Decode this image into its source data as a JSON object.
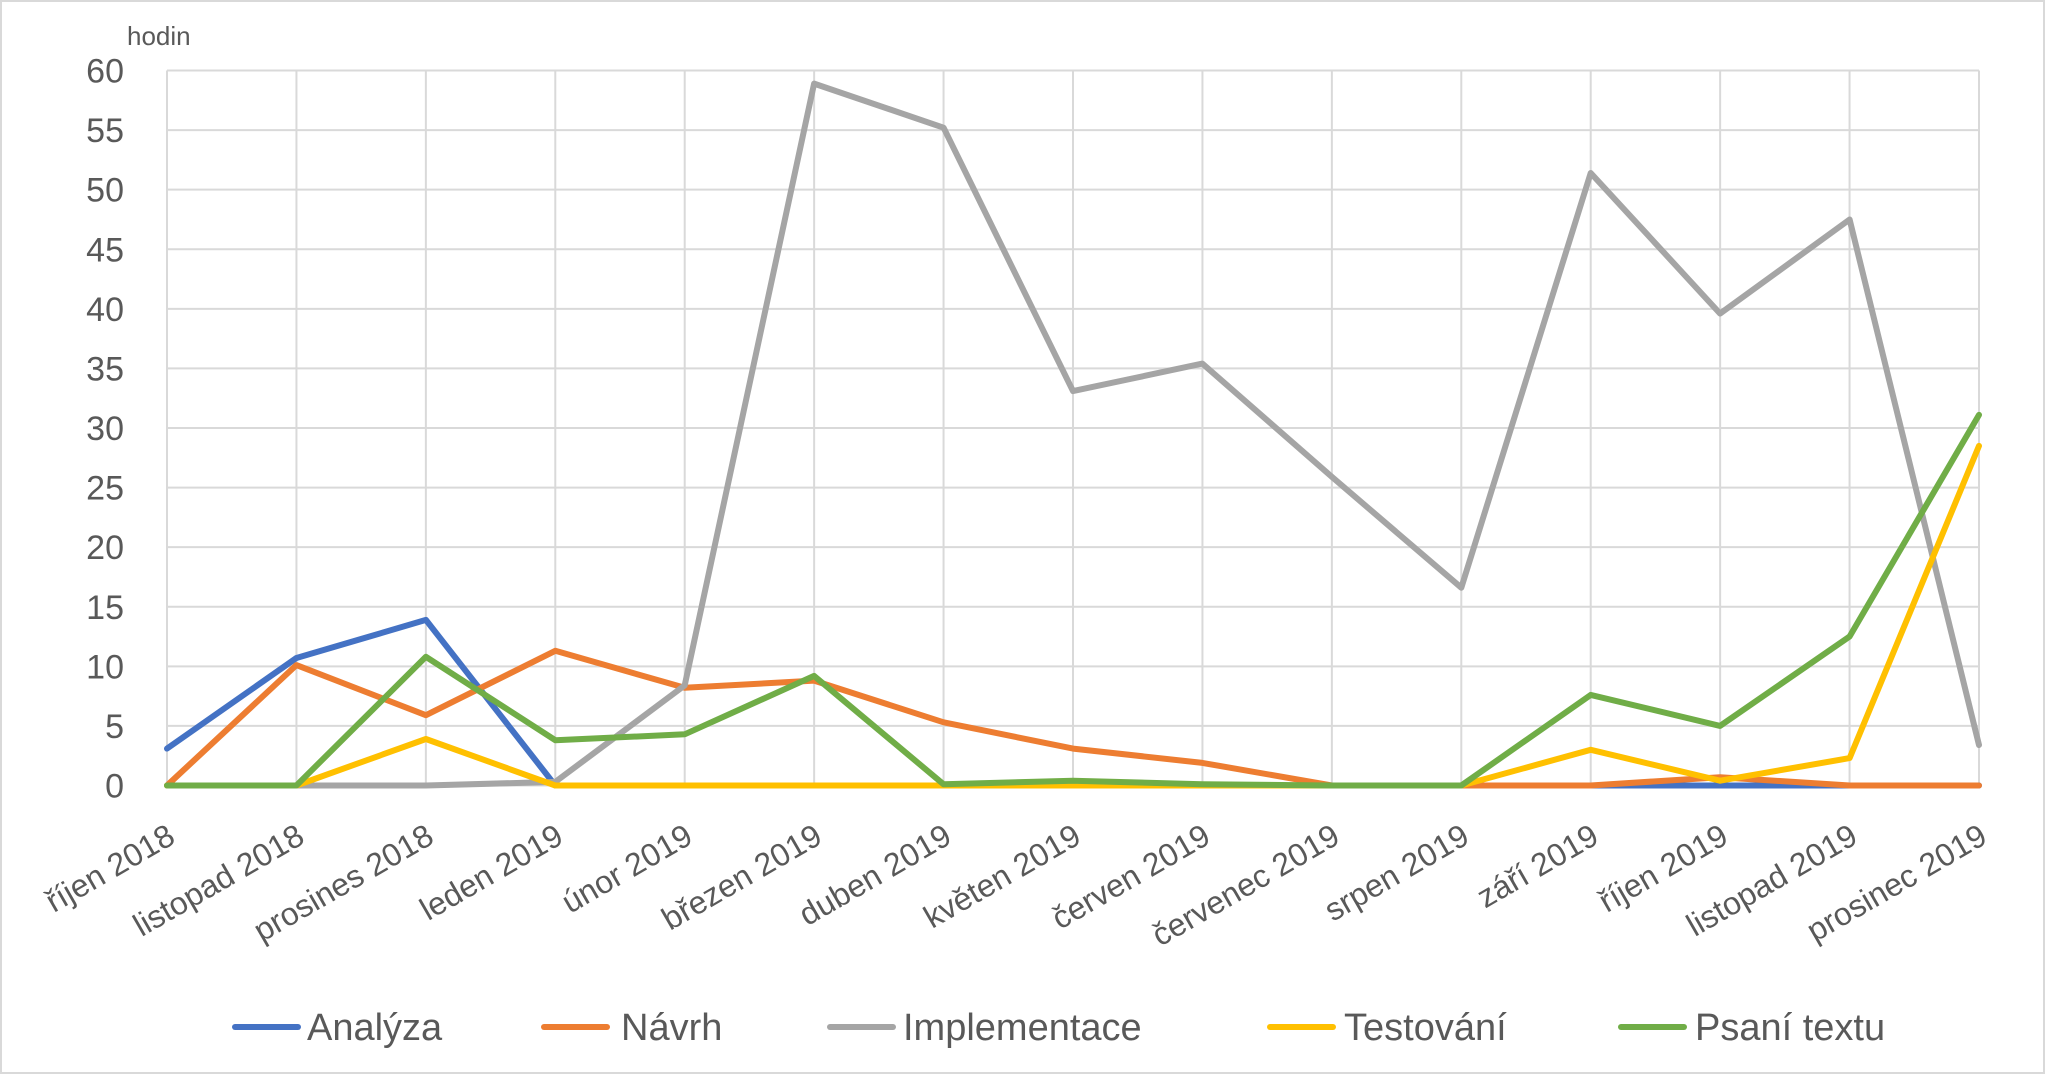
{
  "chart_data": {
    "type": "line",
    "ylabel": "hodin",
    "ylim": [
      0,
      60
    ],
    "yticks": [
      0,
      5,
      10,
      15,
      20,
      25,
      30,
      35,
      40,
      45,
      50,
      55,
      60
    ],
    "grid": true,
    "legend": "bottom",
    "categories": [
      "říjen 2018",
      "listopad 2018",
      "prosines 2018",
      "leden 2019",
      "únor 2019",
      "březen 2019",
      "duben 2019",
      "květen 2019",
      "červen 2019",
      "červenec 2019",
      "srpen 2019",
      "září 2019",
      "říjen 2019",
      "listopad 2019",
      "prosinec 2019"
    ],
    "series": [
      {
        "name": "Analýza",
        "color": "#4472C4",
        "values": [
          3.1,
          10.7,
          13.9,
          0,
          0,
          0,
          0,
          0,
          0,
          0,
          0,
          0,
          0,
          0,
          0
        ]
      },
      {
        "name": "Návrh",
        "color": "#ED7D31",
        "values": [
          0,
          10.1,
          5.9,
          11.3,
          8.2,
          8.8,
          5.3,
          3.1,
          1.9,
          0,
          0,
          0,
          0.7,
          0,
          0
        ]
      },
      {
        "name": "Implementace",
        "color": "#A5A5A5",
        "values": [
          0,
          0,
          0,
          0.3,
          8.4,
          58.9,
          55.2,
          33.1,
          35.4,
          25.9,
          16.6,
          51.4,
          39.6,
          47.5,
          3.4
        ]
      },
      {
        "name": "Testování",
        "color": "#FFC000",
        "values": [
          0,
          0,
          3.9,
          0,
          0,
          0,
          0,
          0,
          0,
          0,
          0,
          3.0,
          0.4,
          2.3,
          28.5
        ]
      },
      {
        "name": "Psaní textu",
        "color": "#70AD47",
        "values": [
          0,
          0,
          10.8,
          3.8,
          4.3,
          9.2,
          0.1,
          0.4,
          0.1,
          0,
          0,
          7.6,
          5.0,
          12.5,
          31.1
        ]
      }
    ]
  }
}
